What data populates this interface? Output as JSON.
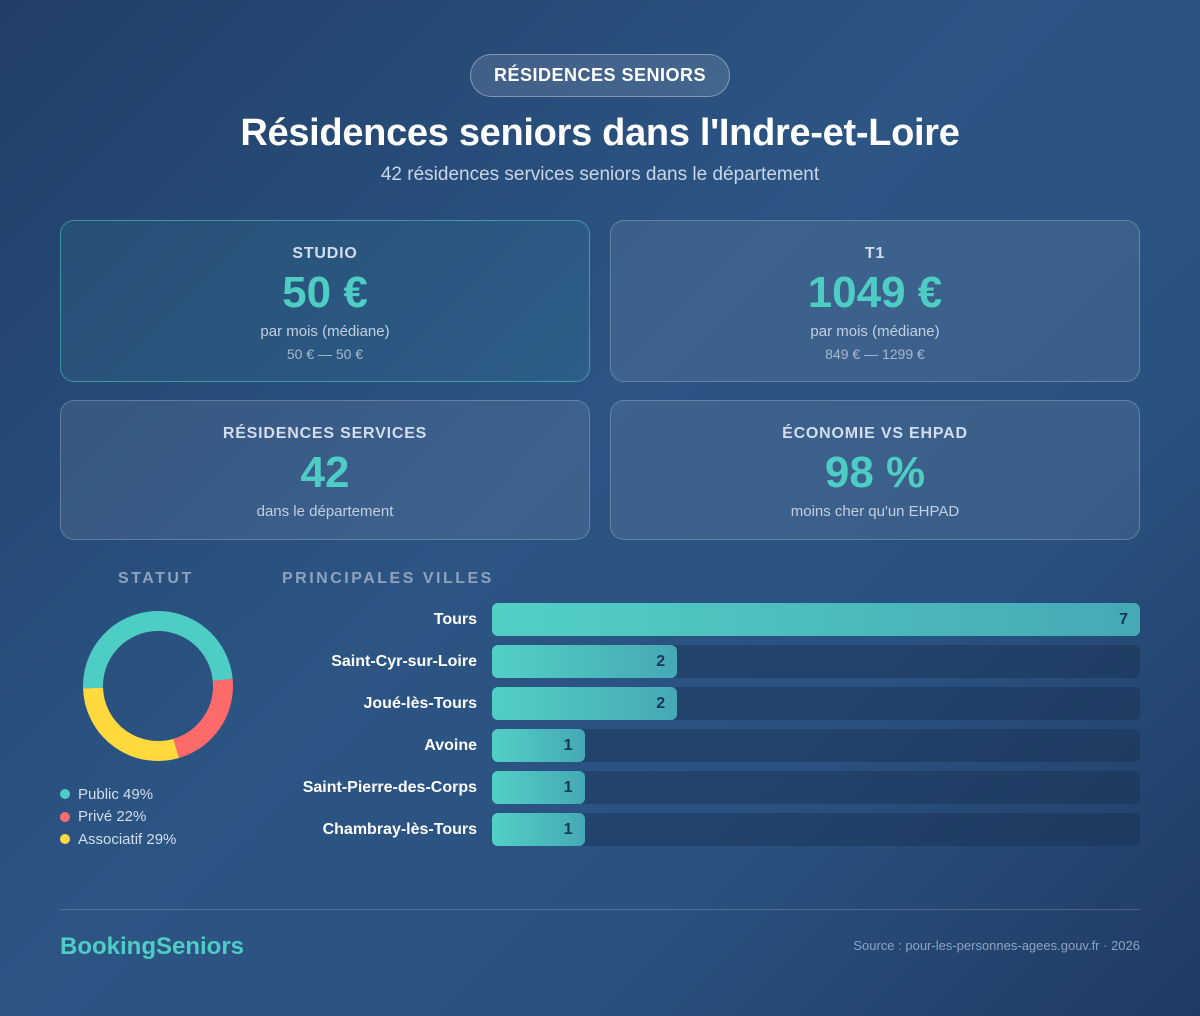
{
  "badge": "RÉSIDENCES SENIORS",
  "header": {
    "title": "Résidences seniors dans l'Indre-et-Loire",
    "subtitle": "42 résidences services seniors dans le département"
  },
  "cards": {
    "studio": {
      "label": "STUDIO",
      "value": "50 €",
      "sub": "par mois (médiane)",
      "range": "50 € — 50 €"
    },
    "t1": {
      "label": "T1",
      "value": "1049 €",
      "sub": "par mois (médiane)",
      "range": "849 € — 1299 €"
    },
    "residences": {
      "label": "RÉSIDENCES SERVICES",
      "value": "42",
      "sub": "dans le département"
    },
    "economie": {
      "label": "ÉCONOMIE VS EHPAD",
      "value": "98 %",
      "sub": "moins cher qu'un EHPAD"
    }
  },
  "chart_data": [
    {
      "type": "pie",
      "title": "STATUT",
      "donut": true,
      "categories": [
        "Public",
        "Privé",
        "Associatif"
      ],
      "values": [
        49,
        22,
        29
      ],
      "legend_labels": [
        "Public 49%",
        "Privé 22%",
        "Associatif 29%"
      ],
      "colors": [
        "#4ecdc4",
        "#ff6b6b",
        "#ffd93d"
      ],
      "legend": "bottom-left"
    },
    {
      "type": "bar",
      "orientation": "horizontal",
      "title": "PRINCIPALES VILLES",
      "categories": [
        "Tours",
        "Saint-Cyr-sur-Loire",
        "Joué-lès-Tours",
        "Avoine",
        "Saint-Pierre-des-Corps",
        "Chambray-lès-Tours"
      ],
      "values": [
        7,
        2,
        2,
        1,
        1,
        1
      ],
      "value_labels": [
        "7",
        "2",
        "2",
        "1",
        "1",
        "1"
      ],
      "xlim": [
        0,
        7
      ],
      "color": "#4ecdc4"
    }
  ],
  "footer": {
    "brand": "BookingSeniors",
    "source": "Source : pour-les-personnes-agees.gouv.fr · 2026"
  }
}
